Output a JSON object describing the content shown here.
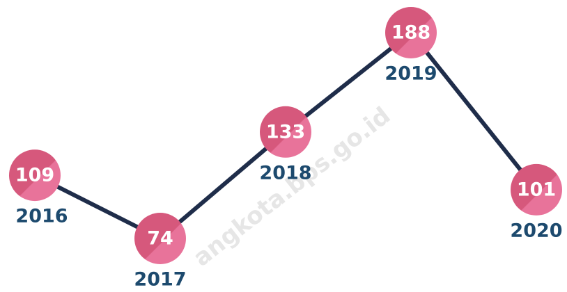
{
  "watermark": "angkota.bps.go.id",
  "chart_data": {
    "type": "line",
    "categories": [
      "2016",
      "2017",
      "2018",
      "2019",
      "2020"
    ],
    "values": [
      109,
      74,
      133,
      188,
      101
    ],
    "color": "#e0628a",
    "line_color": "#1f2d4a"
  }
}
